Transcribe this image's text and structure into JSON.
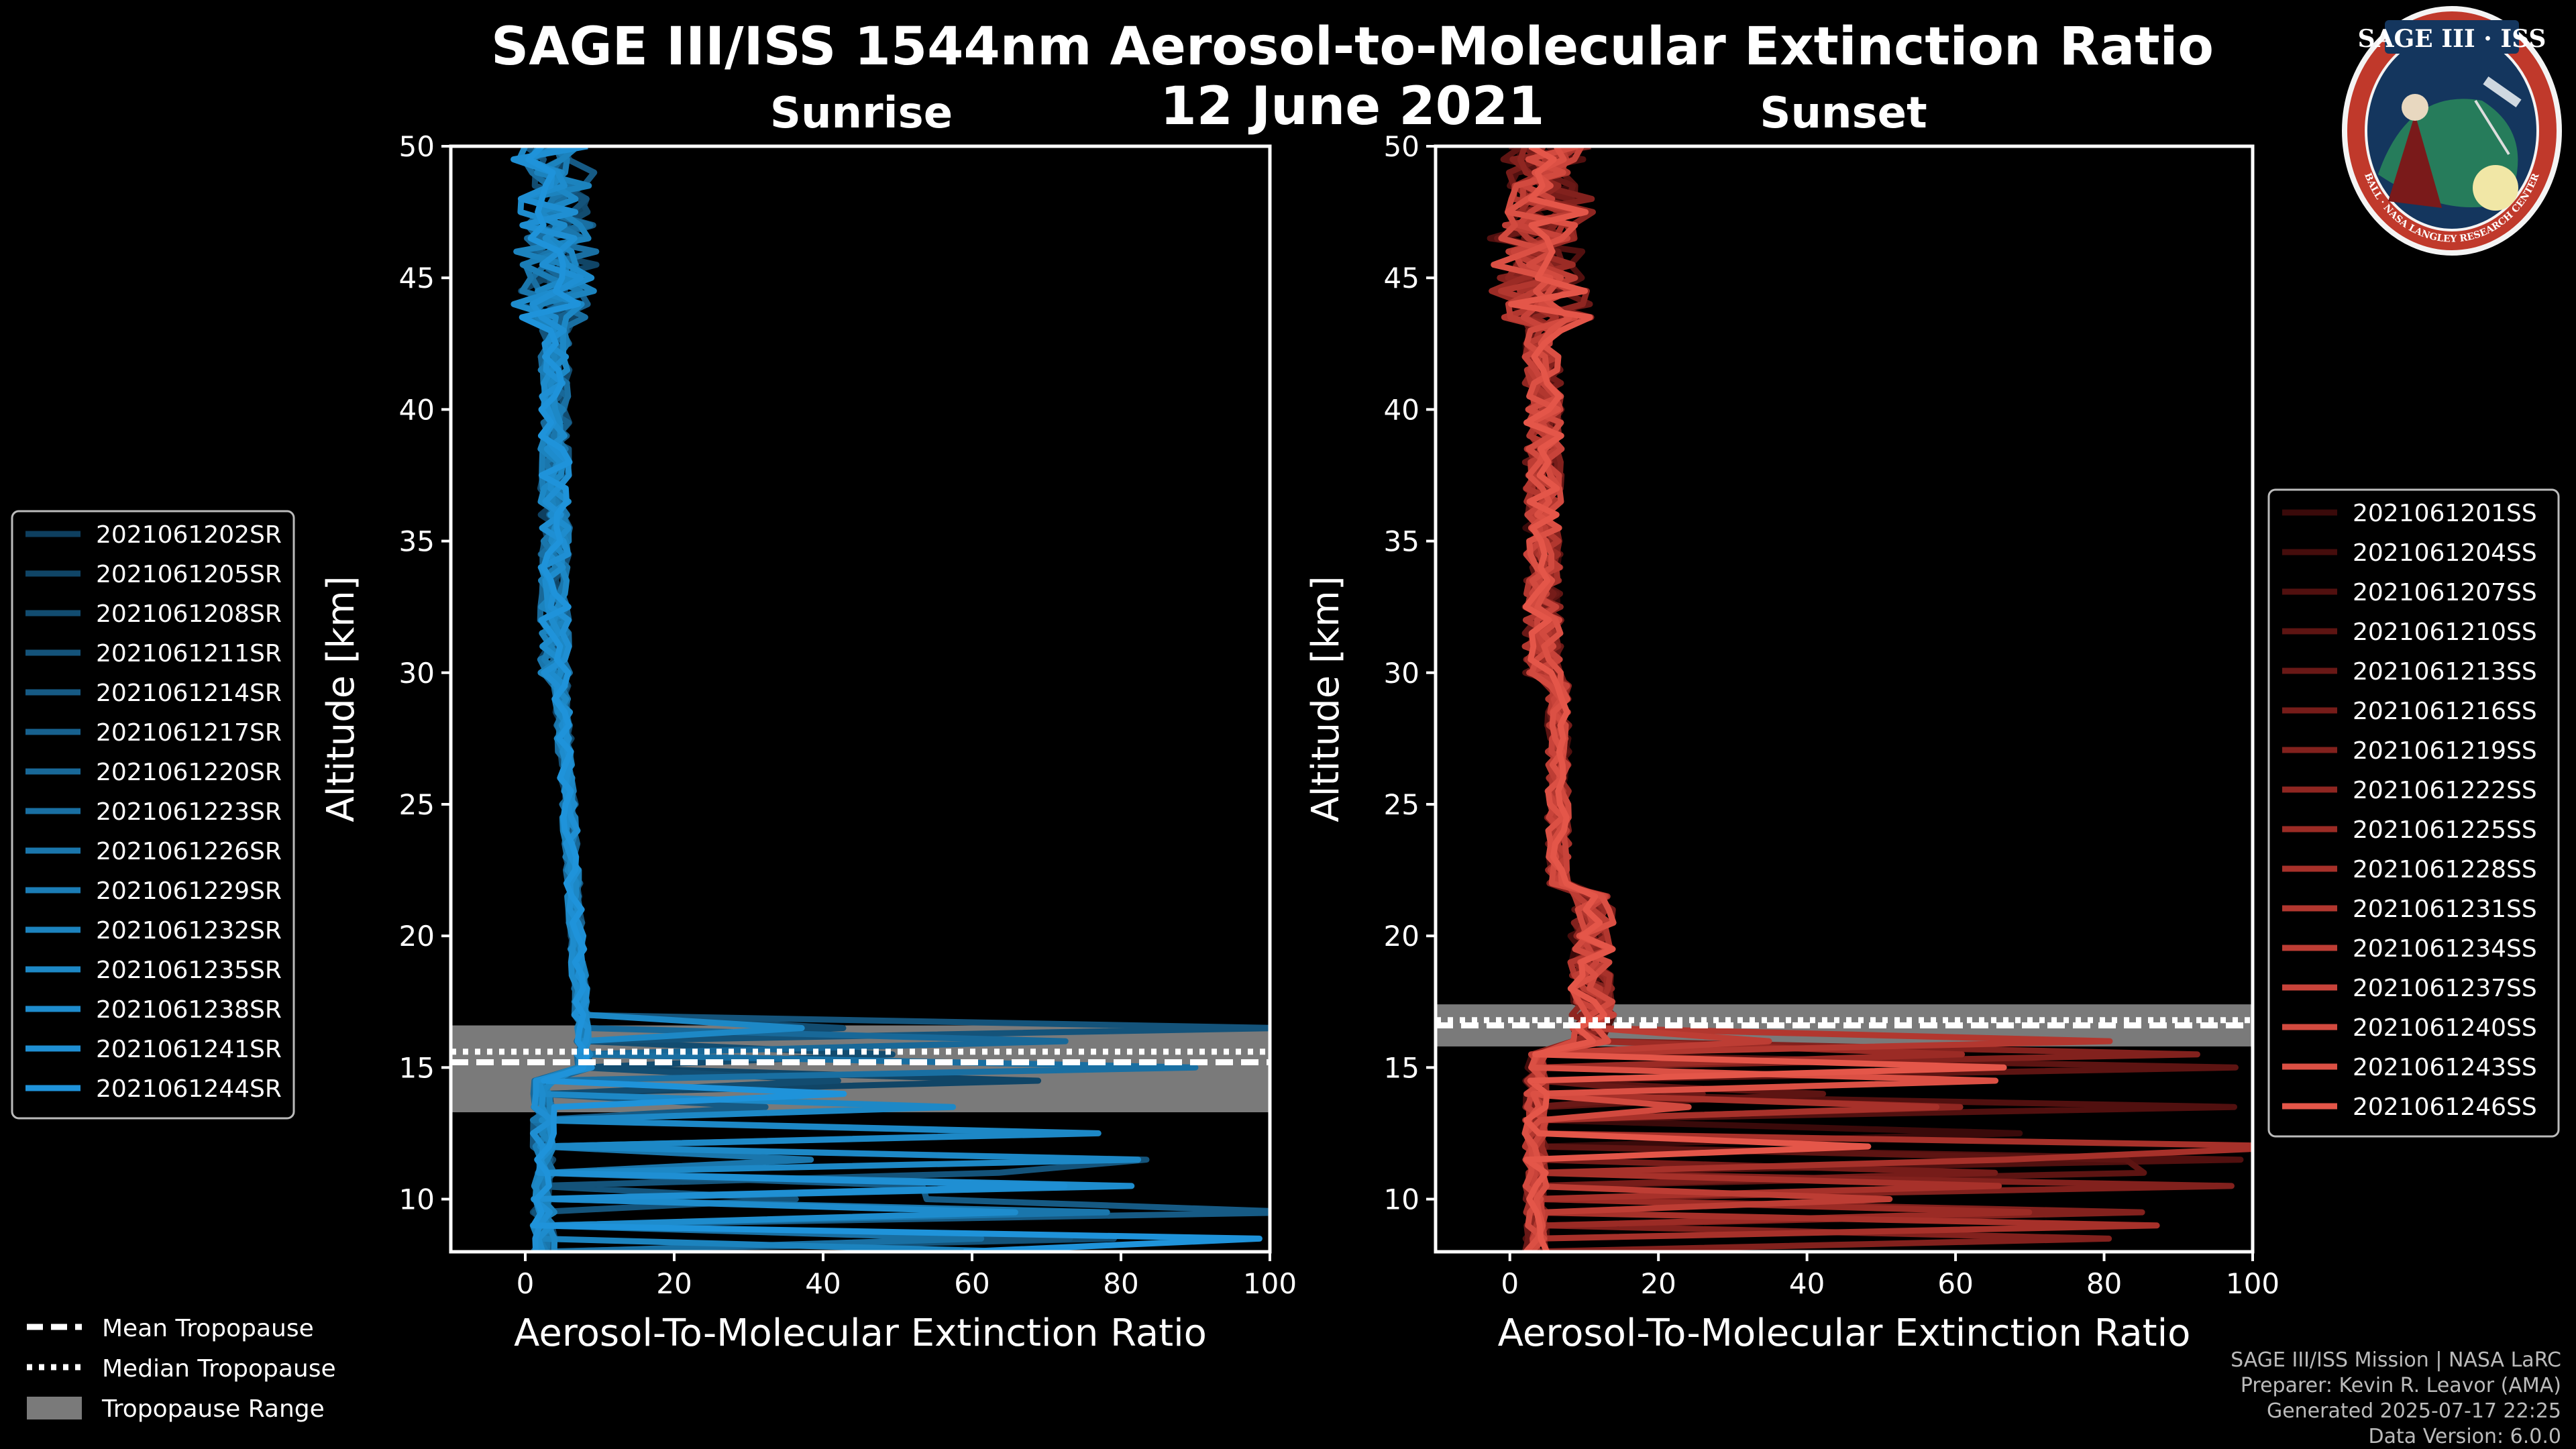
{
  "title_line1": "SAGE III/ISS 1544nm Aerosol-to-Molecular Extinction Ratio",
  "title_line2": "12 June 2021",
  "logo": {
    "text": "SAGE III · ISS",
    "ring_text": "BALL · NASA LANGLEY RESEARCH CENTER · TAS-I · ESA"
  },
  "credits": [
    "SAGE III/ISS Mission | NASA LaRC",
    "Preparer: Kevin R. Leavor (AMA)",
    "Generated 2025-07-17 22:25",
    "Data Version: 6.0.0"
  ],
  "tropopause_legend": {
    "mean": "Mean Tropopause",
    "median": "Median Tropopause",
    "range": "Tropopause Range",
    "range_color": "#7a7a7a"
  },
  "chart_data": [
    {
      "type": "line",
      "title": "Sunrise",
      "xlabel": "Aerosol-To-Molecular Extinction Ratio",
      "ylabel": "Altitude [km]",
      "xlim": [
        -10,
        100
      ],
      "ylim": [
        8,
        50
      ],
      "xticks": [
        "0",
        "20",
        "40",
        "60",
        "80",
        "100"
      ],
      "yticks": [
        "10",
        "15",
        "20",
        "25",
        "30",
        "35",
        "40",
        "45",
        "50"
      ],
      "color": "#1f8fd6",
      "tropopause": {
        "mean": 15.2,
        "median": 15.6,
        "range": [
          13.3,
          16.6
        ]
      },
      "series": [
        {
          "name": "2021061202SR",
          "color": "#0e3f5f"
        },
        {
          "name": "2021061205SR",
          "color": "#104566"
        },
        {
          "name": "2021061208SR",
          "color": "#124c70"
        },
        {
          "name": "2021061211SR",
          "color": "#14537a"
        },
        {
          "name": "2021061214SR",
          "color": "#165a84"
        },
        {
          "name": "2021061217SR",
          "color": "#17618e"
        },
        {
          "name": "2021061220SR",
          "color": "#186898"
        },
        {
          "name": "2021061223SR",
          "color": "#196fa2"
        },
        {
          "name": "2021061226SR",
          "color": "#1a76ac"
        },
        {
          "name": "2021061229SR",
          "color": "#1b7db6"
        },
        {
          "name": "2021061232SR",
          "color": "#1c83be"
        },
        {
          "name": "2021061235SR",
          "color": "#1d88c6"
        },
        {
          "name": "2021061238SR",
          "color": "#1e8ccd"
        },
        {
          "name": "2021061241SR",
          "color": "#1f8fd3"
        },
        {
          "name": "2021061244SR",
          "color": "#1f93da"
        }
      ]
    },
    {
      "type": "line",
      "title": "Sunset",
      "xlabel": "Aerosol-To-Molecular Extinction Ratio",
      "ylabel": "Altitude [km]",
      "xlim": [
        -10,
        100
      ],
      "ylim": [
        8,
        50
      ],
      "xticks": [
        "0",
        "20",
        "40",
        "60",
        "80",
        "100"
      ],
      "yticks": [
        "10",
        "15",
        "20",
        "25",
        "30",
        "35",
        "40",
        "45",
        "50"
      ],
      "color": "#e05545",
      "tropopause": {
        "mean": 16.6,
        "median": 16.8,
        "range": [
          15.8,
          17.4
        ]
      },
      "series": [
        {
          "name": "2021061201SS",
          "color": "#3a0a0a"
        },
        {
          "name": "2021061204SS",
          "color": "#450d0c"
        },
        {
          "name": "2021061207SS",
          "color": "#51100f"
        },
        {
          "name": "2021061210SS",
          "color": "#5d1412"
        },
        {
          "name": "2021061213SS",
          "color": "#691816"
        },
        {
          "name": "2021061216SS",
          "color": "#761c19"
        },
        {
          "name": "2021061219SS",
          "color": "#82211d"
        },
        {
          "name": "2021061222SS",
          "color": "#8f2621"
        },
        {
          "name": "2021061225SS",
          "color": "#9b2b25"
        },
        {
          "name": "2021061228SS",
          "color": "#a7312a"
        },
        {
          "name": "2021061231SS",
          "color": "#b2372f"
        },
        {
          "name": "2021061234SS",
          "color": "#bd3d34"
        },
        {
          "name": "2021061237SS",
          "color": "#c8433a"
        },
        {
          "name": "2021061240SS",
          "color": "#d24a3f"
        },
        {
          "name": "2021061243SS",
          "color": "#db5044"
        },
        {
          "name": "2021061246SS",
          "color": "#e45649"
        }
      ]
    }
  ]
}
